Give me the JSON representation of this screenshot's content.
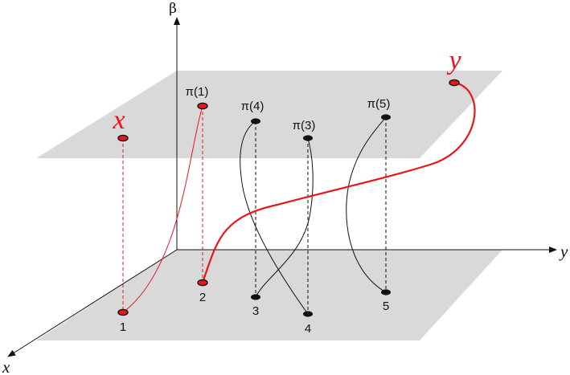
{
  "axes": {
    "beta": "β",
    "y": "y",
    "x": "x"
  },
  "labels": {
    "x_red": "x",
    "y_red": "y"
  },
  "bottom_points": [
    "1",
    "2",
    "3",
    "4",
    "5"
  ],
  "top_points": [
    "π(1)",
    "π(4)",
    "π(3)",
    "π(5)"
  ],
  "colors": {
    "plane": "#d9d9d9",
    "highlight": "#e8161b",
    "ink": "#111111"
  }
}
